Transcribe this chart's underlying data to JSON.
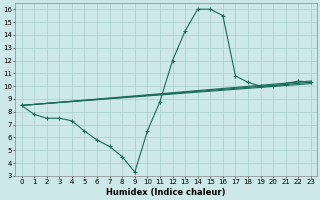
{
  "xlabel": "Humidex (Indice chaleur)",
  "xlim": [
    -0.5,
    23.5
  ],
  "ylim": [
    3,
    16.5
  ],
  "xticks": [
    0,
    1,
    2,
    3,
    4,
    5,
    6,
    7,
    8,
    9,
    10,
    11,
    12,
    13,
    14,
    15,
    16,
    17,
    18,
    19,
    20,
    21,
    22,
    23
  ],
  "yticks": [
    3,
    4,
    5,
    6,
    7,
    8,
    9,
    10,
    11,
    12,
    13,
    14,
    15,
    16
  ],
  "bg_color": "#cce8e8",
  "line_color": "#1a6b5a",
  "main_line": {
    "x": [
      0,
      1,
      2,
      3,
      4,
      5,
      6,
      7,
      8,
      9,
      10,
      11,
      12,
      13,
      14,
      15,
      16,
      17,
      18,
      19,
      20,
      21,
      22,
      23
    ],
    "y": [
      8.5,
      7.8,
      7.5,
      7.5,
      7.3,
      6.5,
      5.8,
      5.3,
      4.5,
      3.3,
      6.5,
      8.8,
      12.0,
      14.3,
      16.0,
      16.0,
      15.5,
      10.8,
      10.3,
      10.0,
      10.0,
      10.2,
      10.4,
      10.3
    ]
  },
  "straight_lines": [
    {
      "x": [
        0,
        23
      ],
      "y": [
        8.5,
        10.2
      ]
    },
    {
      "x": [
        0,
        23
      ],
      "y": [
        8.5,
        10.3
      ]
    },
    {
      "x": [
        0,
        23
      ],
      "y": [
        8.5,
        10.4
      ]
    }
  ],
  "grid_color": "#aacccc",
  "tick_fontsize": 5.0,
  "label_fontsize": 6.0,
  "linewidth": 0.8,
  "markersize": 3.0
}
